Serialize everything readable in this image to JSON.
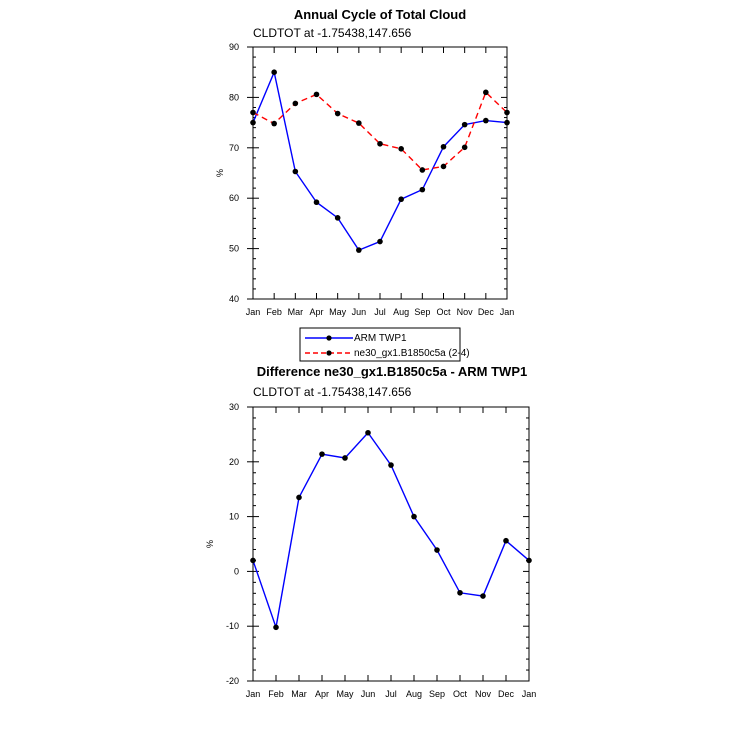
{
  "chart_data": [
    {
      "type": "line",
      "title": "Annual Cycle of Total Cloud",
      "subtitle": "CLDTOT at -1.75438,147.656",
      "ylabel": "%",
      "xlabel": "",
      "ylim": [
        40,
        90
      ],
      "yticks": [
        40,
        50,
        60,
        70,
        80,
        90
      ],
      "categories": [
        "Jan",
        "Feb",
        "Mar",
        "Apr",
        "May",
        "Jun",
        "Jul",
        "Aug",
        "Sep",
        "Oct",
        "Nov",
        "Dec",
        "Jan"
      ],
      "series": [
        {
          "name": "ARM TWP1",
          "color": "#0000ff",
          "dash": "solid",
          "values": [
            75.0,
            85.0,
            65.3,
            59.2,
            56.1,
            49.7,
            51.4,
            59.8,
            61.7,
            70.2,
            74.6,
            75.4,
            75.0
          ]
        },
        {
          "name": "ne30_gx1.B1850c5a (2-4)",
          "color": "#ff0000",
          "dash": "dashed",
          "values": [
            77.0,
            74.8,
            78.8,
            80.6,
            76.8,
            74.9,
            70.8,
            69.8,
            65.6,
            66.3,
            70.1,
            81.0,
            77.0
          ]
        }
      ],
      "legend": "below"
    },
    {
      "type": "line",
      "title": "Difference ne30_gx1.B1850c5a - ARM TWP1",
      "subtitle": "CLDTOT at -1.75438,147.656",
      "ylabel": "%",
      "xlabel": "",
      "ylim": [
        -20,
        30
      ],
      "yticks": [
        -20,
        -10,
        0,
        10,
        20,
        30
      ],
      "categories": [
        "Jan",
        "Feb",
        "Mar",
        "Apr",
        "May",
        "Jun",
        "Jul",
        "Aug",
        "Sep",
        "Oct",
        "Nov",
        "Dec",
        "Jan"
      ],
      "series": [
        {
          "name": "Difference",
          "color": "#0000ff",
          "dash": "solid",
          "values": [
            2.0,
            -10.2,
            13.5,
            21.4,
            20.7,
            25.3,
            19.4,
            10.0,
            3.9,
            -3.9,
            -4.5,
            5.6,
            2.0
          ]
        }
      ]
    }
  ]
}
